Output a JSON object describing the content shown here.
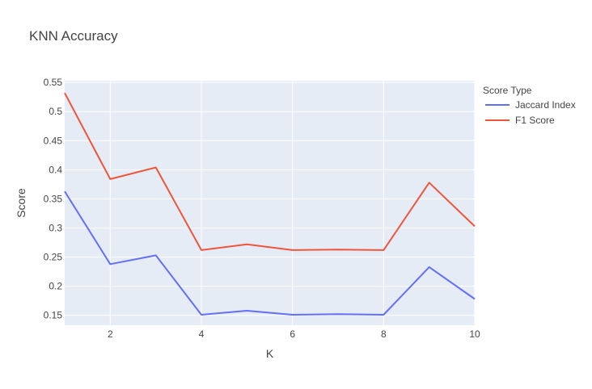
{
  "chart_data": {
    "type": "line",
    "title": "KNN Accuracy",
    "xlabel": "K",
    "ylabel": "Score",
    "xlim": [
      1,
      10
    ],
    "ylim": [
      0.133,
      0.553
    ],
    "x_ticks": [
      2,
      4,
      6,
      8,
      10
    ],
    "x_tick_labels": [
      "2",
      "4",
      "6",
      "8",
      "10"
    ],
    "y_ticks": [
      0.15,
      0.2,
      0.25,
      0.3,
      0.35,
      0.4,
      0.45,
      0.5,
      0.55
    ],
    "y_tick_labels": [
      "0.15",
      "0.2",
      "0.25",
      "0.3",
      "0.35",
      "0.4",
      "0.45",
      "0.5",
      "0.55"
    ],
    "grid": true,
    "legend_title": "Score Type",
    "legend_position": "right",
    "x": [
      1,
      2,
      3,
      4,
      5,
      6,
      7,
      8,
      9,
      10
    ],
    "series": [
      {
        "name": "Jaccard Index",
        "color": "#636efa",
        "values": [
          0.363,
          0.238,
          0.253,
          0.151,
          0.158,
          0.151,
          0.152,
          0.151,
          0.233,
          0.178
        ]
      },
      {
        "name": "F1 Score",
        "color": "#ef553b",
        "values": [
          0.532,
          0.384,
          0.404,
          0.262,
          0.272,
          0.262,
          0.263,
          0.262,
          0.378,
          0.303
        ]
      }
    ]
  }
}
